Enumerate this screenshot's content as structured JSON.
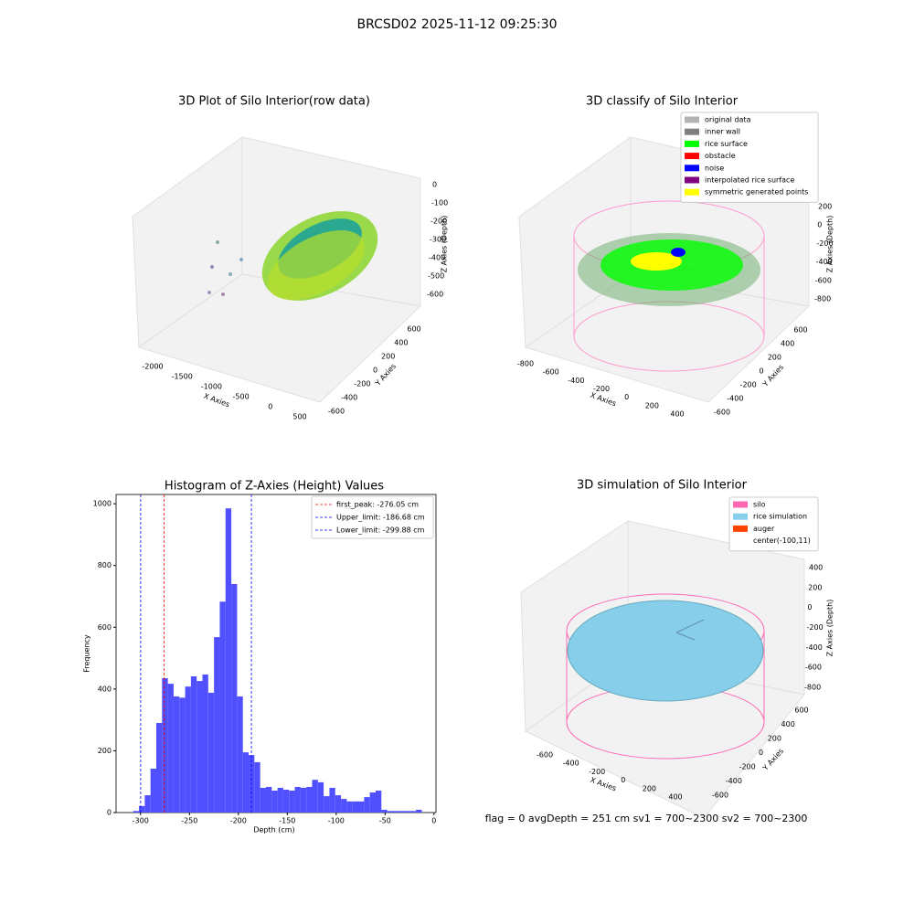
{
  "title": "BRCSD02 2025-11-12 09:25:30",
  "chart_data": [
    {
      "type": "scatter3d",
      "title": "3D Plot of Silo Interior(row data)",
      "xlabel": "X Axies",
      "ylabel": "Y Axies",
      "zlabel": "Z Axies (Depth)",
      "xticks": [
        -2000,
        -1500,
        -1000,
        -500,
        0,
        500
      ],
      "yticks": [
        -600,
        -400,
        -200,
        0,
        200,
        400,
        600
      ],
      "zticks": [
        0,
        -100,
        -200,
        -300,
        -400,
        -500,
        -600
      ]
    },
    {
      "type": "scatter3d",
      "title": "3D classify of Silo Interior",
      "xlabel": "X Axies",
      "ylabel": "Y Axies",
      "zlabel": "Z Axies (Depth)",
      "xticks": [
        -800,
        -600,
        -400,
        -200,
        0,
        200,
        400
      ],
      "yticks": [
        -600,
        -400,
        -200,
        0,
        200,
        400,
        600
      ],
      "zticks": [
        200,
        0,
        -200,
        -400,
        -600,
        -800
      ],
      "series": [
        {
          "name": "original data",
          "color": "#b3b3b3"
        },
        {
          "name": "inner wall",
          "color": "#808080"
        },
        {
          "name": "rice surface",
          "color": "#00ff00"
        },
        {
          "name": "obstacle",
          "color": "#ff0000"
        },
        {
          "name": "noise",
          "color": "#0000ff"
        },
        {
          "name": "interpolated rice surface",
          "color": "#800080"
        },
        {
          "name": "symmetric generated points",
          "color": "#ffff00"
        }
      ]
    },
    {
      "type": "histogram",
      "title": "Histogram of Z-Axies (Height) Values",
      "xlabel": "Depth (cm)",
      "ylabel": "Frequency",
      "color": "#5050ff",
      "bins": [
        -307.5,
        -301.6,
        -295.7,
        -289.8,
        -283.9,
        -278.0,
        -272.1,
        -266.2,
        -260.3,
        -254.4,
        -248.5,
        -242.6,
        -236.7,
        -230.8,
        -224.9,
        -219.0,
        -213.1,
        -207.2,
        -201.3,
        -195.4,
        -189.5,
        -183.6,
        -177.7,
        -171.8,
        -165.9,
        -160.0,
        -154.1,
        -148.2,
        -142.3,
        -136.4,
        -130.5,
        -124.6,
        -118.7,
        -112.8,
        -106.9,
        -101.0,
        -95.1,
        -89.2,
        -83.3,
        -77.4,
        -71.5,
        -65.6,
        -59.7,
        -53.8,
        -47.9,
        -42.0,
        -36.1,
        -30.2,
        -24.3,
        -18.4,
        -12.5
      ],
      "counts": [
        5,
        21,
        56,
        142,
        290,
        435,
        417,
        376,
        372,
        408,
        441,
        426,
        447,
        388,
        568,
        683,
        985,
        740,
        376,
        195,
        186,
        163,
        80,
        83,
        71,
        80,
        74,
        71,
        83,
        80,
        83,
        106,
        98,
        53,
        80,
        56,
        44,
        36,
        36,
        36,
        50,
        65,
        71,
        9,
        5,
        5,
        5,
        5,
        5,
        9
      ],
      "xlim": [
        -325,
        2
      ],
      "ylim": [
        0,
        1030
      ],
      "xticks": [
        -300,
        -250,
        -200,
        -150,
        -100,
        -50,
        0
      ],
      "yticks": [
        0,
        200,
        400,
        600,
        800,
        1000
      ],
      "lines": [
        {
          "label": "first_peak: -276.05 cm",
          "value": -276.05,
          "color": "#ff0000"
        },
        {
          "label": "Upper_limit: -186.68 cm",
          "value": -186.68,
          "color": "#0000ff"
        },
        {
          "label": "Lower_limit: -299.88 cm",
          "value": -299.88,
          "color": "#0000ff"
        }
      ]
    },
    {
      "type": "surface3d",
      "title": "3D simulation of Silo Interior",
      "xlabel": "X Axies",
      "ylabel": "Y Axies",
      "zlabel": "Z Axies (Depth)",
      "xticks": [
        -600,
        -400,
        -200,
        0,
        200,
        400
      ],
      "yticks": [
        -600,
        -400,
        -200,
        0,
        200,
        400,
        600
      ],
      "zticks": [
        400,
        200,
        0,
        -200,
        -400,
        -600,
        -800
      ],
      "series": [
        {
          "name": "silo",
          "color": "#ff69b4"
        },
        {
          "name": "rice simulation",
          "color": "#87ceeb"
        },
        {
          "name": "auger",
          "color": "#ff4500"
        },
        {
          "name": "center(-100,11)"
        }
      ],
      "annotation": "flag = 0     avgDepth = 251 cm  sv1 = 700~2300  sv2 = 700~2300"
    }
  ]
}
